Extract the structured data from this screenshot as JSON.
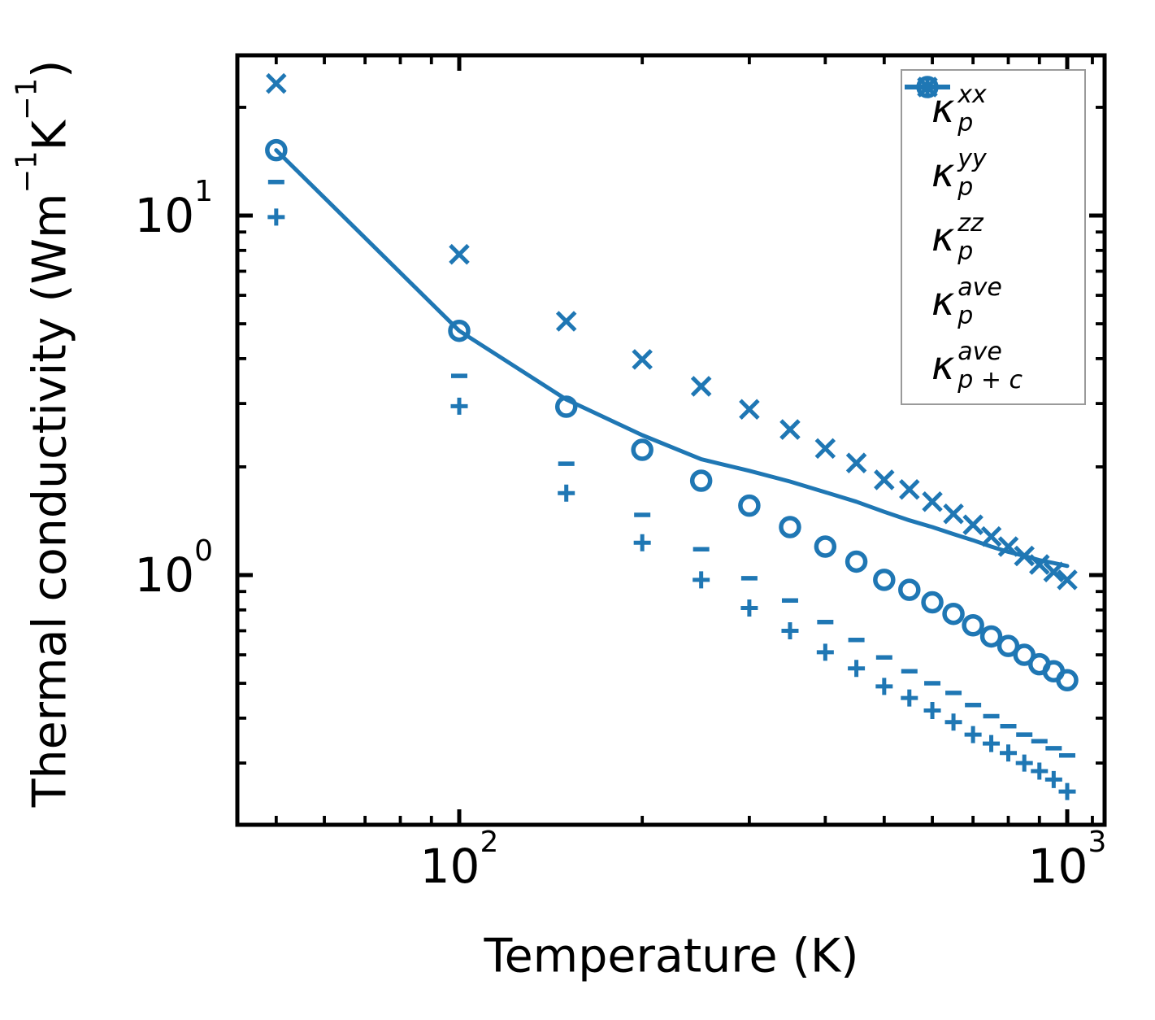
{
  "figure": {
    "background": "#ffffff",
    "accent_color": "#1f77b4",
    "axis_color": "#000000",
    "legend_border_color": "#9a9a9a"
  },
  "axes": {
    "x": {
      "label": "Temperature (K)",
      "scale": "log",
      "range": [
        43,
        1150
      ],
      "major_ticks": [
        {
          "value": 100,
          "base": "10",
          "exp": "2"
        },
        {
          "value": 1000,
          "base": "10",
          "exp": "3"
        }
      ],
      "minor_ticks": [
        50,
        60,
        70,
        80,
        90,
        200,
        300,
        400,
        500,
        600,
        700,
        800,
        900,
        1100
      ]
    },
    "y": {
      "label_parts": [
        {
          "t": "Thermal conductivity (Wm"
        },
        {
          "sup": "−1"
        },
        {
          "t": "K"
        },
        {
          "sup": "−1"
        },
        {
          "t": ")"
        }
      ],
      "scale": "log",
      "range": [
        0.2,
        28
      ],
      "major_ticks": [
        {
          "value": 1,
          "base": "10",
          "exp": "0"
        },
        {
          "value": 10,
          "base": "10",
          "exp": "1"
        }
      ],
      "minor_ticks": [
        0.3,
        0.4,
        0.5,
        0.6,
        0.7,
        0.8,
        0.9,
        2,
        3,
        4,
        5,
        6,
        7,
        8,
        9,
        20
      ]
    }
  },
  "legend": {
    "items": [
      {
        "marker": "plus",
        "label": {
          "base": "κ",
          "sup": "xx",
          "sub": "p"
        }
      },
      {
        "marker": "x",
        "label": {
          "base": "κ",
          "sup": "yy",
          "sub": "p"
        }
      },
      {
        "marker": "hline",
        "label": {
          "base": "κ",
          "sup": "zz",
          "sub": "p"
        }
      },
      {
        "marker": "circle",
        "label": {
          "base": "κ",
          "sup": "ave",
          "sub": "p"
        }
      },
      {
        "marker": "line",
        "label": {
          "base": "κ",
          "sup": "ave",
          "sub": "p + c"
        }
      }
    ]
  },
  "chart_data": {
    "type": "scatter",
    "subtype": "log-log line + scatter",
    "title": "",
    "xlabel": "Temperature (K)",
    "ylabel": "Thermal conductivity (Wm−1K−1)",
    "xscale": "log",
    "yscale": "log",
    "xlim": [
      43,
      1150
    ],
    "ylim": [
      0.2,
      28
    ],
    "grid": false,
    "legend_position": "upper right",
    "x": [
      50,
      100,
      150,
      200,
      250,
      300,
      350,
      400,
      450,
      500,
      550,
      600,
      650,
      700,
      750,
      800,
      850,
      900,
      950,
      1000
    ],
    "series": [
      {
        "name": "κ_p^xx",
        "marker": "plus",
        "style": "scatter",
        "values": [
          9.9,
          2.95,
          1.69,
          1.23,
          0.97,
          0.81,
          0.7,
          0.61,
          0.55,
          0.49,
          0.455,
          0.42,
          0.39,
          0.36,
          0.34,
          0.32,
          0.3,
          0.285,
          0.27,
          0.25
        ]
      },
      {
        "name": "κ_p^yy",
        "marker": "x",
        "style": "scatter",
        "values": [
          23.3,
          7.8,
          5.08,
          3.98,
          3.35,
          2.89,
          2.54,
          2.25,
          2.05,
          1.84,
          1.73,
          1.6,
          1.48,
          1.38,
          1.28,
          1.2,
          1.13,
          1.07,
          1.02,
          0.97
        ]
      },
      {
        "name": "κ_p^zz",
        "marker": "hline",
        "style": "scatter",
        "values": [
          12.4,
          3.58,
          2.04,
          1.47,
          1.18,
          0.98,
          0.85,
          0.74,
          0.66,
          0.59,
          0.54,
          0.5,
          0.47,
          0.435,
          0.405,
          0.38,
          0.36,
          0.345,
          0.33,
          0.315
        ]
      },
      {
        "name": "κ_p^ave",
        "marker": "circle",
        "style": "scatter",
        "values": [
          15.2,
          4.78,
          2.94,
          2.23,
          1.83,
          1.56,
          1.36,
          1.2,
          1.09,
          0.97,
          0.91,
          0.84,
          0.78,
          0.725,
          0.675,
          0.635,
          0.6,
          0.565,
          0.54,
          0.51
        ]
      },
      {
        "name": "κ_p+c^ave",
        "marker": "none",
        "style": "line",
        "values": [
          15.2,
          4.78,
          3.08,
          2.45,
          2.1,
          1.95,
          1.82,
          1.7,
          1.6,
          1.5,
          1.42,
          1.36,
          1.3,
          1.25,
          1.2,
          1.16,
          1.13,
          1.1,
          1.08,
          1.06
        ]
      }
    ]
  }
}
